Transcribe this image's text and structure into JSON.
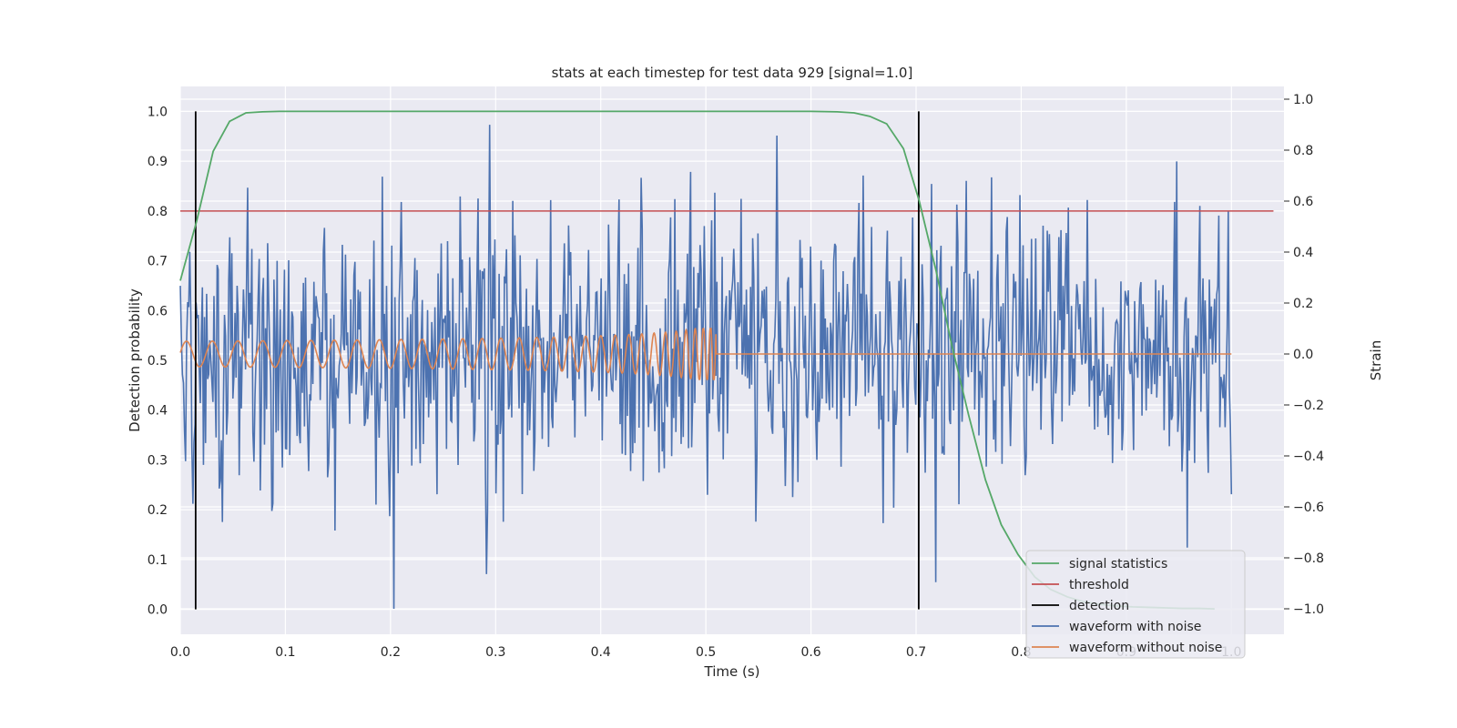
{
  "chart_data": {
    "type": "line",
    "title": "stats at each timestep for test data 929 [signal=1.0]",
    "xlabel": "Time (s)",
    "ylabel": "Detection probability",
    "y2label": "Strain",
    "xlim": [
      0.0,
      1.05
    ],
    "ylim": [
      -0.05,
      1.05
    ],
    "y2lim": [
      -1.1,
      1.05
    ],
    "xticks": [
      "0.0",
      "0.1",
      "0.2",
      "0.3",
      "0.4",
      "0.5",
      "0.6",
      "0.7",
      "0.8",
      "0.9",
      "1.0"
    ],
    "yticks": [
      "0.0",
      "0.1",
      "0.2",
      "0.3",
      "0.4",
      "0.5",
      "0.6",
      "0.7",
      "0.8",
      "0.9",
      "1.0"
    ],
    "y2ticks": [
      "−1.0",
      "−0.8",
      "−0.6",
      "−0.4",
      "−0.2",
      "0.0",
      "0.2",
      "0.4",
      "0.6",
      "0.8",
      "1.0"
    ],
    "grid": true,
    "legend_position": "lower-right",
    "series": [
      {
        "name": "signal statistics",
        "axis": "left",
        "color": "#55a868",
        "x": [
          0.0,
          0.0156,
          0.0313,
          0.0469,
          0.0625,
          0.078,
          0.094,
          0.11,
          0.2,
          0.3,
          0.4,
          0.5,
          0.6,
          0.625,
          0.641,
          0.656,
          0.672,
          0.688,
          0.703,
          0.719,
          0.734,
          0.75,
          0.766,
          0.781,
          0.797,
          0.813,
          0.828,
          0.844,
          0.86,
          0.875,
          0.89,
          0.906,
          0.922,
          0.938,
          0.953,
          0.969,
          0.984
        ],
        "y": [
          0.66,
          0.78,
          0.92,
          0.98,
          0.997,
          0.999,
          1.0,
          1.0,
          1.0,
          1.0,
          1.0,
          1.0,
          1.0,
          0.999,
          0.997,
          0.99,
          0.975,
          0.925,
          0.82,
          0.68,
          0.53,
          0.39,
          0.26,
          0.17,
          0.11,
          0.065,
          0.04,
          0.025,
          0.015,
          0.01,
          0.007,
          0.005,
          0.004,
          0.003,
          0.002,
          0.002,
          0.001
        ]
      },
      {
        "name": "threshold",
        "axis": "left",
        "color": "#c44e52",
        "x": [
          0.0,
          1.04
        ],
        "y": [
          0.8,
          0.8
        ]
      },
      {
        "name": "detection",
        "axis": "left",
        "color": "#000000",
        "vlines": [
          0.0146,
          0.7025
        ],
        "y": [
          0.0,
          1.0
        ]
      },
      {
        "name": "waveform with noise",
        "axis": "right",
        "color": "#4c72b0",
        "x_range": [
          0.0,
          1.0
        ],
        "y_range": [
          -1.0,
          1.0
        ],
        "points": 1000
      },
      {
        "name": "waveform without noise",
        "axis": "right",
        "color": "#dd8452",
        "x_range": [
          0.0,
          1.0
        ],
        "amplitude": 0.05,
        "merger_time": 0.51
      }
    ]
  }
}
